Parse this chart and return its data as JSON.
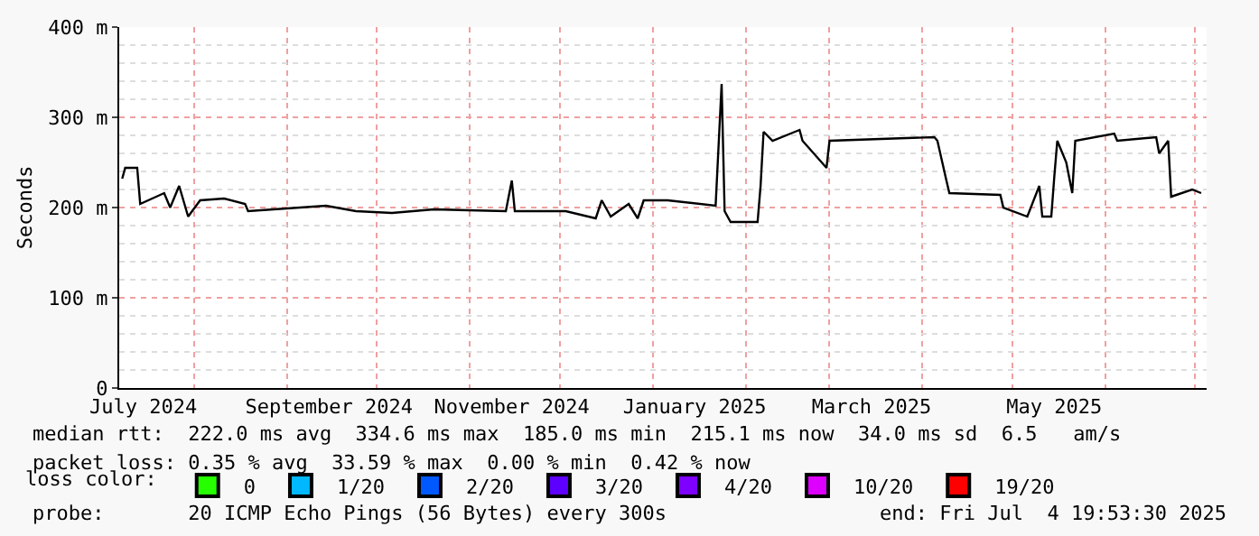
{
  "chart_data": {
    "type": "line",
    "ylabel": "Seconds",
    "xlim": [
      "2024-07-07",
      "2025-07-04T19:53"
    ],
    "xticks": [
      {
        "value": "2024-07-15",
        "label": "July 2024"
      },
      {
        "value": "2024-09-15",
        "label": "September 2024"
      },
      {
        "value": "2024-11-15",
        "label": "November 2024"
      },
      {
        "value": "2025-01-15",
        "label": "January 2025"
      },
      {
        "value": "2025-03-15",
        "label": "March 2025"
      },
      {
        "value": "2025-05-15",
        "label": "May 2025"
      }
    ],
    "ylim": [
      0,
      400
    ],
    "yticks": [
      0,
      {
        "value": 100,
        "label": "100 m"
      },
      {
        "value": 200,
        "label": "200 m"
      },
      {
        "value": 300,
        "label": "300 m"
      },
      {
        "value": 400,
        "label": "400 m"
      }
    ],
    "grid": true,
    "legend": "bottom",
    "legend_title": "loss color:",
    "marker": "none",
    "line_style": "solid",
    "series": [
      {
        "color": "#000000",
        "x": [
          "2024-07-08",
          "2024-07-09",
          "2024-07-13",
          "2024-07-14",
          "2024-07-22",
          "2024-07-24",
          "2024-07-27",
          "2024-07-30",
          "2024-08-03",
          "2024-08-11",
          "2024-08-18",
          "2024-08-19",
          "2024-09-14",
          "2024-09-24",
          "2024-10-06",
          "2024-10-20",
          "2024-11-13",
          "2024-11-15",
          "2024-11-16",
          "2024-12-03",
          "2024-12-13",
          "2024-12-15",
          "2024-12-18",
          "2024-12-24",
          "2024-12-27",
          "2024-12-29",
          "2025-01-06",
          "2025-01-22",
          "2025-01-24",
          "2025-01-25",
          "2025-01-27",
          "2025-02-05",
          "2025-02-06",
          "2025-02-07",
          "2025-02-10",
          "2025-02-19",
          "2025-02-20",
          "2025-02-28",
          "2025-03-01",
          "2025-04-05",
          "2025-04-06",
          "2025-04-09",
          "2025-04-10",
          "2025-04-27",
          "2025-04-28",
          "2025-05-06",
          "2025-05-10",
          "2025-05-11",
          "2025-05-14",
          "2025-05-15",
          "2025-05-16",
          "2025-05-19",
          "2025-05-21",
          "2025-05-22",
          "2025-06-04",
          "2025-06-05",
          "2025-06-18",
          "2025-06-19",
          "2025-06-22",
          "2025-06-23",
          "2025-06-30",
          "2025-07-03"
        ],
        "values": [
          232,
          244,
          244,
          204,
          216,
          200,
          224,
          190,
          208,
          210,
          204,
          196,
          202,
          196,
          194,
          198,
          196,
          230,
          196,
          196,
          188,
          208,
          190,
          204,
          188,
          208,
          208,
          202,
          337,
          196,
          184,
          184,
          224,
          284,
          274,
          286,
          274,
          244,
          274,
          278,
          274,
          230,
          216,
          214,
          200,
          190,
          224,
          190,
          190,
          234,
          274,
          250,
          216,
          274,
          282,
          274,
          278,
          260,
          274,
          212,
          220,
          216
        ]
      },
      {
        "name": "0",
        "color": "#26ff00"
      },
      {
        "name": "1/20",
        "color": "#00b8ff"
      },
      {
        "name": "2/20",
        "color": "#0059ff"
      },
      {
        "name": "3/20",
        "color": "#5e00ff"
      },
      {
        "name": "4/20",
        "color": "#7e00ff"
      },
      {
        "name": "10/20",
        "color": "#dd00ff"
      },
      {
        "name": "19/20",
        "color": "#ff0000"
      }
    ],
    "annotations": [
      "median rtt:  222.0 ms avg  334.6 ms max  185.0 ms min  215.1 ms now  34.0 ms sd  6.5   am/s",
      "packet loss: 0.35 % avg  33.59 % max  0.00 % min  0.42 % now",
      "probe:       20 ICMP Echo Pings (56 Bytes) every 300s",
      "end: Fri Jul  4 19:53:30 2025"
    ]
  }
}
